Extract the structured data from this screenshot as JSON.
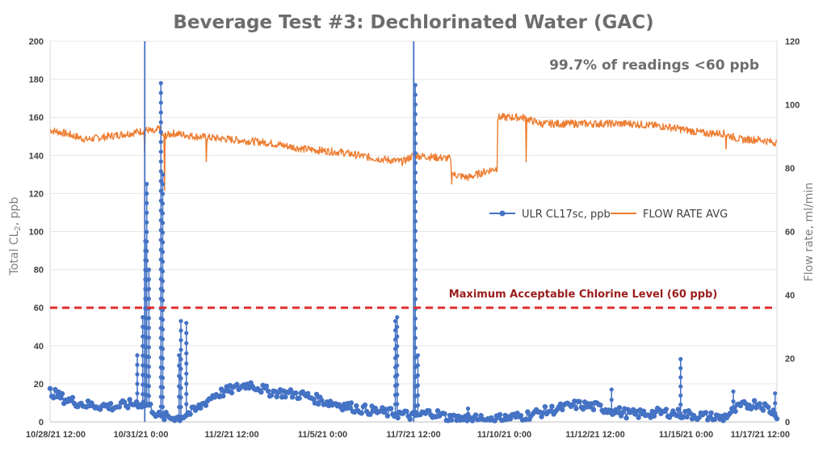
{
  "chart_data": {
    "type": "line",
    "title": "Beverage Test #3: Dechlorinated Water (GAC)",
    "annotation": "99.7% of readings <60 ppb",
    "x_ticks": [
      "10/28/21 12:00",
      "10/31/21 0:00",
      "11/2/21 12:00",
      "11/5/21 0:00",
      "11/7/21 12:00",
      "11/10/21 0:00",
      "11/12/21 12:00",
      "11/15/21 0:00",
      "11/17/21 12:00"
    ],
    "x_tick_days": [
      0,
      2.5,
      5,
      7.5,
      10,
      12.5,
      15,
      17.5,
      20
    ],
    "xlim_days": [
      0,
      20
    ],
    "y_left": {
      "label_main": "Total CL",
      "label_sub": "2",
      "label_tail": ", ppb",
      "ylim": [
        0,
        200
      ],
      "ticks": [
        "0",
        "20",
        "40",
        "60",
        "80",
        "100",
        "120",
        "140",
        "160",
        "180",
        "200"
      ]
    },
    "y_right": {
      "label": "Flow rate, ml/min",
      "ylim": [
        0,
        120
      ],
      "ticks": [
        "0",
        "20",
        "40",
        "60",
        "80",
        "100",
        "120"
      ]
    },
    "threshold": {
      "value": 60,
      "label": "Maximum Acceptable Chlorine Level (60 ppb)",
      "color": "#e03030"
    },
    "series": [
      {
        "name": "ULR CL17sc, ppb",
        "axis": "left",
        "color": "#4472c4",
        "marker": "circle",
        "baseline_days": [
          0,
          0.4,
          1,
          1.8,
          2.4,
          2.7,
          3.0,
          3.5,
          4.0,
          4.5,
          5.0,
          5.5,
          6.0,
          7.0,
          7.5,
          8.5,
          9.2,
          9.7,
          10.0,
          10.5,
          11.0,
          12.0,
          13.0,
          14.0,
          14.5,
          15.0,
          15.5,
          16.0,
          17.0,
          17.5,
          18.0,
          18.5,
          19.0,
          19.5,
          20.0
        ],
        "baseline_values": [
          16,
          12,
          9,
          8,
          10,
          9,
          3,
          2,
          6,
          14,
          17,
          20,
          16,
          14,
          11,
          7,
          5,
          4,
          3,
          5,
          2,
          1,
          3,
          7,
          9,
          8,
          6,
          4,
          5,
          4,
          3,
          2,
          8,
          10,
          4
        ],
        "spikes": [
          {
            "day": 2.4,
            "peak": 35
          },
          {
            "day": 2.55,
            "peak": 55
          },
          {
            "day": 2.62,
            "peak": 95
          },
          {
            "day": 2.66,
            "peak": 125
          },
          {
            "day": 2.72,
            "peak": 80
          },
          {
            "day": 3.05,
            "peak": 178
          },
          {
            "day": 3.1,
            "peak": 130
          },
          {
            "day": 3.6,
            "peak": 53
          },
          {
            "day": 3.75,
            "peak": 52
          },
          {
            "day": 3.55,
            "peak": 35
          },
          {
            "day": 9.55,
            "peak": 55
          },
          {
            "day": 9.5,
            "peak": 53
          },
          {
            "day": 10.05,
            "peak": 177
          },
          {
            "day": 10.12,
            "peak": 35
          },
          {
            "day": 15.45,
            "peak": 17
          },
          {
            "day": 17.35,
            "peak": 33
          },
          {
            "day": 18.8,
            "peak": 16
          },
          {
            "day": 19.95,
            "peak": 15
          },
          {
            "day": 11.5,
            "peak": 7
          }
        ]
      },
      {
        "name": "FLOW RATE AVG",
        "axis": "right",
        "color": "#ed7d31",
        "x_days": [
          0,
          0.4,
          1,
          1.6,
          2.2,
          2.7,
          2.9,
          3.0,
          3.1,
          3.4,
          4.0,
          5.0,
          6.0,
          7.0,
          8.0,
          9.0,
          9.7,
          10.0,
          11.0,
          11.1,
          11.5,
          12.0,
          12.3,
          12.3,
          12.6,
          13.0,
          13.5,
          14.0,
          15.0,
          16.0,
          17.0,
          18.0,
          18.5,
          19.0,
          19.5,
          20.0
        ],
        "values": [
          92,
          91,
          89,
          90,
          91,
          92,
          91,
          93,
          90,
          91,
          90,
          89,
          88,
          86,
          85,
          83,
          82,
          84,
          83,
          78,
          77,
          79,
          80,
          96,
          96,
          96,
          94,
          94,
          94,
          94,
          93,
          91,
          91,
          89,
          89,
          88
        ],
        "dips": [
          {
            "day": 2.6,
            "value": 85
          },
          {
            "day": 3.15,
            "value": 73
          },
          {
            "day": 4.3,
            "value": 82
          },
          {
            "day": 13.1,
            "value": 82
          },
          {
            "day": 18.6,
            "value": 86
          },
          {
            "day": 11.05,
            "value": 75
          }
        ]
      }
    ],
    "legend_position": "center-right",
    "grid": "horizontal"
  }
}
